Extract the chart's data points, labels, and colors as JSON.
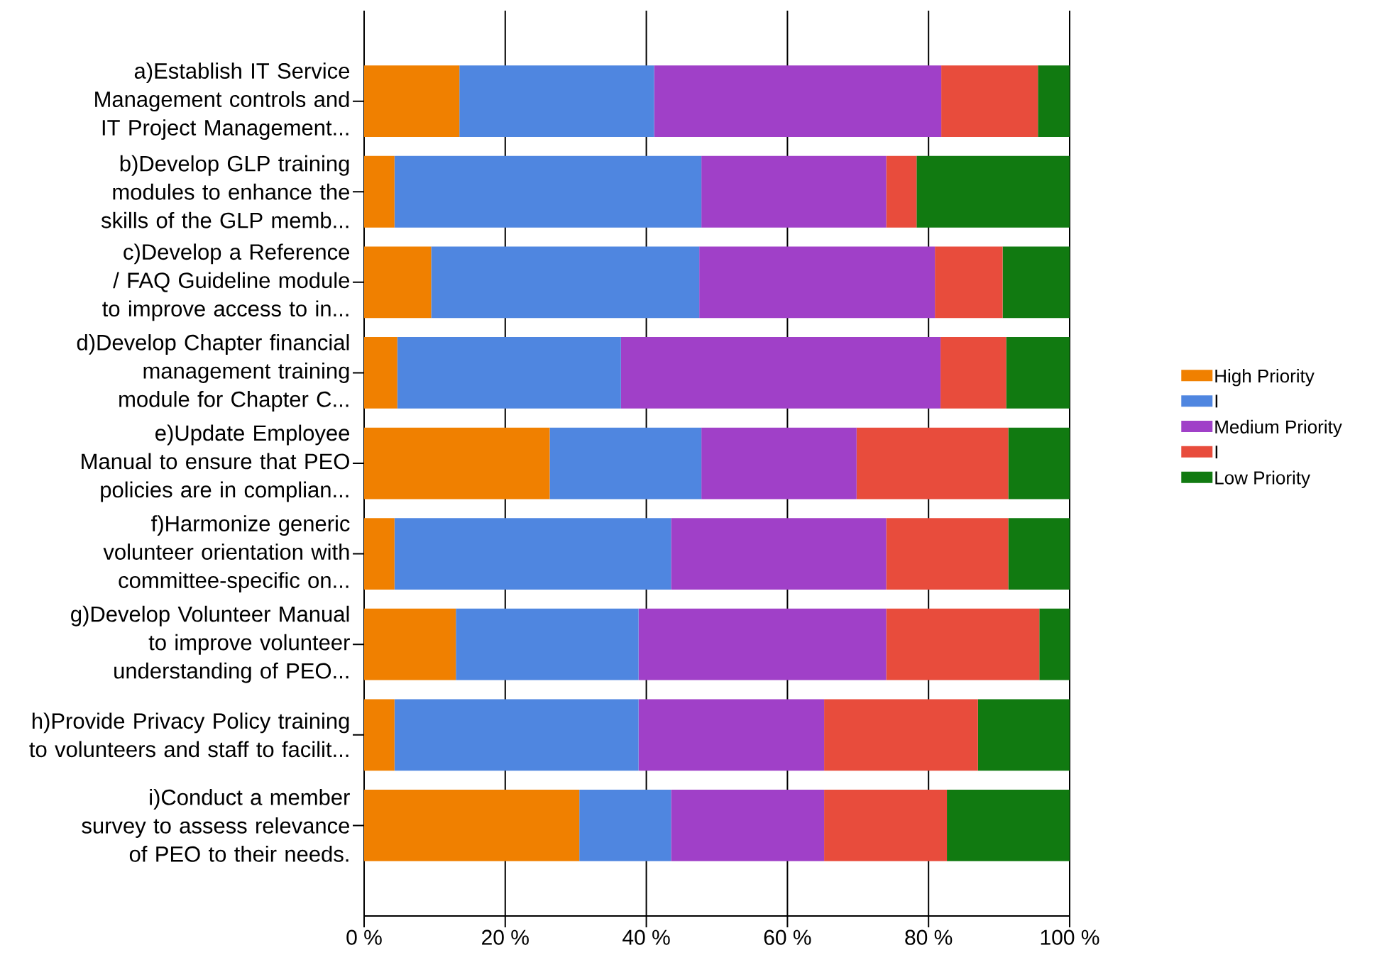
{
  "chart_data": {
    "type": "bar",
    "orientation": "horizontal",
    "stacked": true,
    "categories": [
      "a)Establish IT Service Management controls and IT Project Management...",
      "b)Develop GLP training modules to enhance the skills of the GLP memb...",
      "c)Develop a Reference / FAQ Guideline module to improve access to in...",
      "d)Develop Chapter financial management training module for Chapter C...",
      "e)Update Employee Manual to ensure that PEO policies are in complian...",
      "f)Harmonize generic volunteer orientation with committee-specific on...",
      "g)Develop Volunteer Manual to improve volunteer understanding of PEO...",
      "h)Provide Privacy Policy training to volunteers and staff to facilit...",
      "i)Conduct a member survey to assess relevance of PEO to their needs."
    ],
    "series": [
      {
        "name": "High Priority",
        "color": "#f08000",
        "values": [
          13.5,
          4.3,
          9.5,
          4.7,
          26.3,
          4.3,
          13.0,
          4.3,
          30.5
        ]
      },
      {
        "name": "I",
        "color": "#4f86e0",
        "values": [
          27.6,
          43.5,
          38.0,
          31.7,
          21.5,
          39.2,
          25.9,
          34.6,
          13.0
        ]
      },
      {
        "name": "Medium Priority",
        "color": "#a040c8",
        "values": [
          40.7,
          26.2,
          33.4,
          45.3,
          22.0,
          30.5,
          35.1,
          26.3,
          21.7
        ]
      },
      {
        "name": "I",
        "color": "#e84c3c",
        "values": [
          13.7,
          4.3,
          9.6,
          9.3,
          21.5,
          17.3,
          21.7,
          21.8,
          17.4
        ]
      },
      {
        "name": "Low Priority",
        "color": "#117a11",
        "values": [
          4.5,
          21.7,
          9.5,
          9.0,
          8.7,
          8.7,
          4.3,
          13.0,
          17.4
        ]
      }
    ],
    "xlim": [
      0,
      100
    ],
    "xticks": [
      {
        "value": 0,
        "label": "0 %"
      },
      {
        "value": 20,
        "label": "20 %"
      },
      {
        "value": 40,
        "label": "40 %"
      },
      {
        "value": 60,
        "label": "60 %"
      },
      {
        "value": 80,
        "label": "80 %"
      },
      {
        "value": 100,
        "label": "100 %"
      }
    ],
    "grid": "x",
    "legend": "right"
  }
}
